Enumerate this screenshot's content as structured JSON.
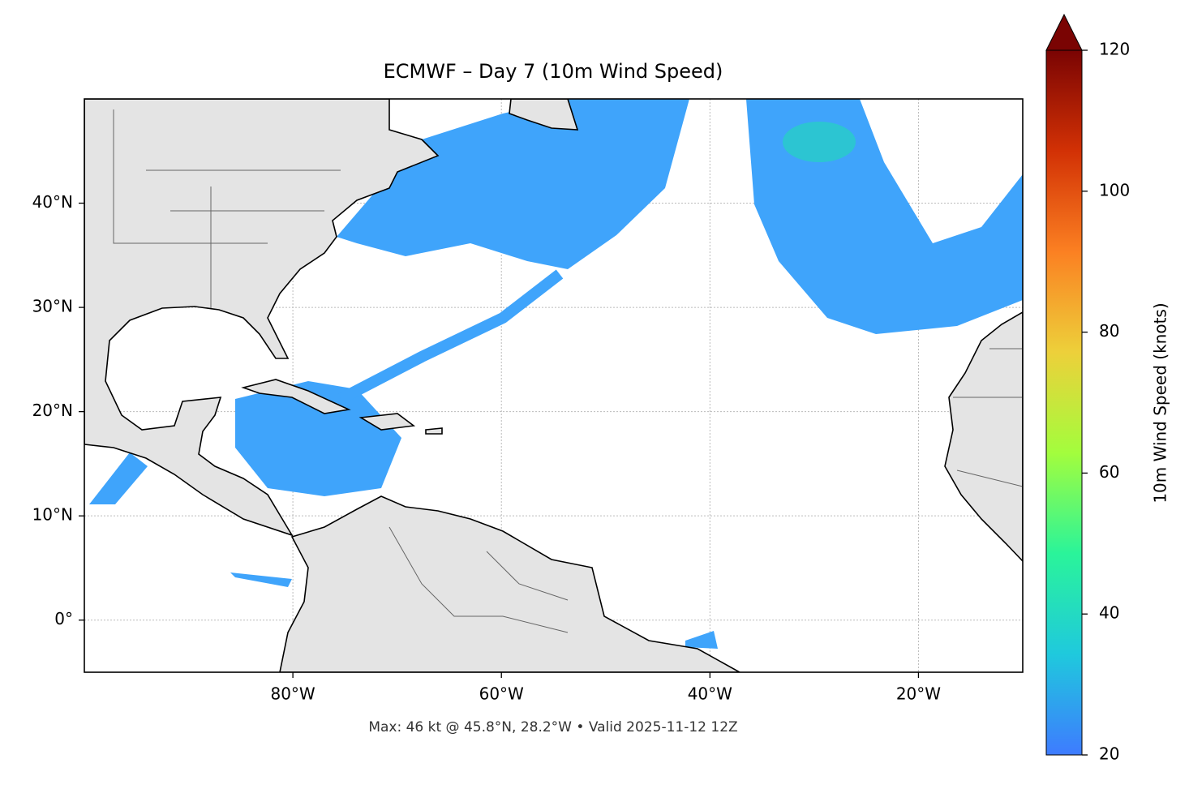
{
  "chart_data": {
    "type": "map",
    "title": "ECMWF – Day 7 (10m Wind Speed)",
    "caption": "Max: 46 kt @ 45.8°N, 28.2°W • Valid 2025-11-12 12Z",
    "xlim": [
      -100,
      -10
    ],
    "ylim": [
      -5,
      50
    ],
    "xticks": [
      {
        "value": -80,
        "label": "80°W"
      },
      {
        "value": -60,
        "label": "60°W"
      },
      {
        "value": -40,
        "label": "40°W"
      },
      {
        "value": -20,
        "label": "20°W"
      }
    ],
    "yticks": [
      {
        "value": 0,
        "label": "0°"
      },
      {
        "value": 10,
        "label": "10°N"
      },
      {
        "value": 20,
        "label": "20°N"
      },
      {
        "value": 30,
        "label": "30°N"
      },
      {
        "value": 40,
        "label": "40°N"
      }
    ],
    "grid": true,
    "colorbar": {
      "label": "10m Wind Speed (knots)",
      "lim": [
        20,
        120
      ],
      "ticks": [
        20,
        40,
        60,
        80,
        100,
        120
      ],
      "colors": [
        "#3e7bff",
        "#1fc9dd",
        "#2af49a",
        "#a3fd3d",
        "#edd03a",
        "#fb8022",
        "#d23105",
        "#7a0403"
      ]
    }
  }
}
